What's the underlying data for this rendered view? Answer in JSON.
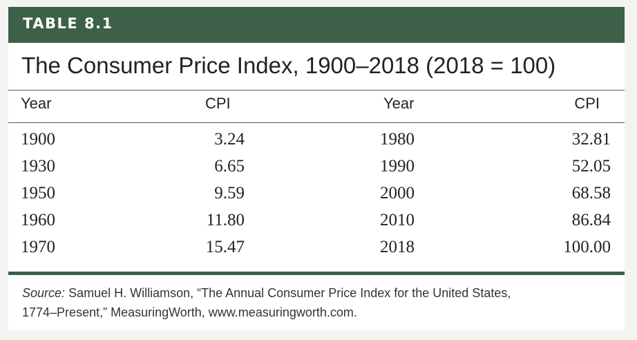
{
  "table_label": "TABLE 8.1",
  "title": "The Consumer Price Index, 1900–2018 (2018 = 100)",
  "headers": [
    "Year",
    "CPI",
    "Year",
    "CPI"
  ],
  "rows": [
    [
      "1900",
      "3.24",
      "1980",
      "32.81"
    ],
    [
      "1930",
      "6.65",
      "1990",
      "52.05"
    ],
    [
      "1950",
      "9.59",
      "2000",
      "68.58"
    ],
    [
      "1960",
      "11.80",
      "2010",
      "86.84"
    ],
    [
      "1970",
      "15.47",
      "2018",
      "100.00"
    ]
  ],
  "source": {
    "label": "Source:",
    "line1": "Samuel H. Williamson, “The Annual Consumer Price Index for the United States,",
    "line2": "1774–Present,” MeasuringWorth, www.measuringworth.com."
  },
  "colors": {
    "accent": "#3c6048",
    "background": "#f3f4f2"
  }
}
